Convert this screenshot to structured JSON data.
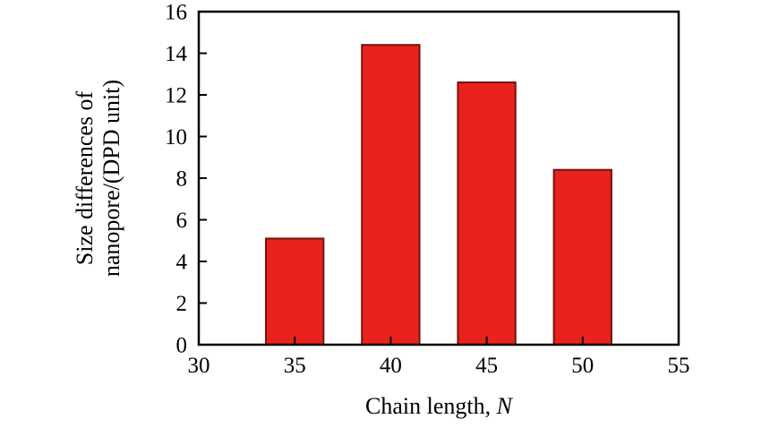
{
  "chart_data": {
    "type": "bar",
    "title": "",
    "xlabel_prefix": "Chain length, ",
    "xlabel_italic": "N",
    "ylabel_line1": "Size differences of",
    "ylabel_line2": "nanopore/(DPD unit)",
    "categories": [
      35,
      40,
      45,
      50
    ],
    "values": [
      5.1,
      14.4,
      12.6,
      8.4
    ],
    "xlim": [
      30,
      55
    ],
    "ylim": [
      0,
      16
    ],
    "x_ticks": [
      30,
      35,
      40,
      45,
      50,
      55
    ],
    "y_ticks": [
      0,
      2,
      4,
      6,
      8,
      10,
      12,
      14,
      16
    ],
    "bar_width_units": 3,
    "bar_color": "#e8231d",
    "bar_edge_color": "#7a100c",
    "axis_color": "#000000",
    "background": "#ffffff",
    "grid": false,
    "legend": "none"
  }
}
